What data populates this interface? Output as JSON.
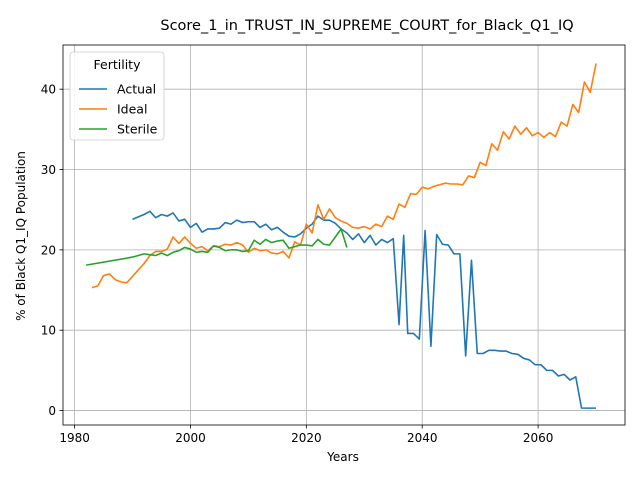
{
  "chart_data": {
    "type": "line",
    "title": "Score_1_in_TRUST_IN_SUPREME_COURT_for_Black_Q1_IQ",
    "xlabel": "Years",
    "ylabel": "% of Black Q1_IQ Population",
    "xlim": [
      1978,
      2075
    ],
    "ylim": [
      -1.8,
      45.5
    ],
    "xticks": [
      1980,
      2000,
      2020,
      2040,
      2060
    ],
    "yticks": [
      0,
      10,
      20,
      30,
      40
    ],
    "grid": true,
    "legend": {
      "title": "Fertility",
      "placement": "top-left"
    },
    "series": [
      {
        "name": "Actual",
        "color": "#1f77b4",
        "points": [
          [
            1990,
            23.8
          ],
          [
            1991,
            24.1
          ],
          [
            1992,
            24.4
          ],
          [
            1993,
            24.8
          ],
          [
            1994,
            24.0
          ],
          [
            1995,
            24.4
          ],
          [
            1996,
            24.2
          ],
          [
            1997,
            24.6
          ],
          [
            1998,
            23.6
          ],
          [
            1999,
            23.8
          ],
          [
            2000,
            22.8
          ],
          [
            2001,
            23.3
          ],
          [
            2002,
            22.2
          ],
          [
            2003,
            22.6
          ],
          [
            2004,
            22.6
          ],
          [
            2005,
            22.7
          ],
          [
            2006,
            23.4
          ],
          [
            2007,
            23.2
          ],
          [
            2008,
            23.7
          ],
          [
            2009,
            23.4
          ],
          [
            2010,
            23.5
          ],
          [
            2011,
            23.5
          ],
          [
            2012,
            22.8
          ],
          [
            2013,
            23.2
          ],
          [
            2014,
            22.5
          ],
          [
            2015,
            22.8
          ],
          [
            2016,
            22.2
          ],
          [
            2017,
            21.7
          ],
          [
            2018,
            21.6
          ],
          [
            2019,
            22.0
          ],
          [
            2020,
            22.7
          ],
          [
            2021,
            23.2
          ],
          [
            2022,
            24.2
          ],
          [
            2023,
            23.7
          ],
          [
            2024,
            23.7
          ],
          [
            2025,
            23.3
          ],
          [
            2026,
            22.6
          ],
          [
            2027,
            22.1
          ],
          [
            2028,
            21.3
          ],
          [
            2029,
            22.0
          ],
          [
            2030,
            20.9
          ],
          [
            2031,
            21.8
          ],
          [
            2032,
            20.6
          ],
          [
            2033,
            21.3
          ],
          [
            2034,
            20.9
          ],
          [
            2035,
            21.4
          ],
          [
            2036,
            10.7
          ],
          [
            2036.8,
            21.8
          ],
          [
            2037.5,
            9.6
          ],
          [
            2038.5,
            9.6
          ],
          [
            2039.5,
            8.9
          ],
          [
            2040.5,
            22.4
          ],
          [
            2041.5,
            8.0
          ],
          [
            2042.5,
            21.9
          ],
          [
            2043.5,
            20.7
          ],
          [
            2044.5,
            20.6
          ],
          [
            2045.5,
            19.5
          ],
          [
            2046.5,
            19.5
          ],
          [
            2047.5,
            6.8
          ],
          [
            2048.5,
            18.7
          ],
          [
            2049.5,
            7.1
          ],
          [
            2050.5,
            7.1
          ],
          [
            2051.5,
            7.5
          ],
          [
            2052.5,
            7.5
          ],
          [
            2053.5,
            7.4
          ],
          [
            2054.5,
            7.4
          ],
          [
            2055.5,
            7.1
          ],
          [
            2056.5,
            7.0
          ],
          [
            2057.5,
            6.5
          ],
          [
            2058.5,
            6.3
          ],
          [
            2059.5,
            5.7
          ],
          [
            2060.5,
            5.7
          ],
          [
            2061.5,
            5.0
          ],
          [
            2062.5,
            5.0
          ],
          [
            2063.5,
            4.3
          ],
          [
            2064.5,
            4.5
          ],
          [
            2065.5,
            3.8
          ],
          [
            2066.5,
            4.2
          ],
          [
            2067.5,
            0.3
          ],
          [
            2068.5,
            0.3
          ],
          [
            2070,
            0.3
          ]
        ]
      },
      {
        "name": "Ideal",
        "color": "#ff7f0e",
        "points": [
          [
            1983,
            15.3
          ],
          [
            1984,
            15.5
          ],
          [
            1985,
            16.8
          ],
          [
            1986,
            17.0
          ],
          [
            1987,
            16.3
          ],
          [
            1988,
            16.0
          ],
          [
            1989,
            15.9
          ],
          [
            1990,
            16.7
          ],
          [
            1991,
            17.5
          ],
          [
            1992,
            18.3
          ],
          [
            1993,
            19.3
          ],
          [
            1994,
            19.8
          ],
          [
            1995,
            19.8
          ],
          [
            1996,
            20.1
          ],
          [
            1997,
            21.6
          ],
          [
            1998,
            20.8
          ],
          [
            1999,
            21.6
          ],
          [
            2000,
            20.8
          ],
          [
            2001,
            20.2
          ],
          [
            2002,
            20.4
          ],
          [
            2003,
            19.9
          ],
          [
            2004,
            20.5
          ],
          [
            2005,
            20.4
          ],
          [
            2006,
            20.7
          ],
          [
            2007,
            20.6
          ],
          [
            2008,
            20.9
          ],
          [
            2009,
            20.6
          ],
          [
            2010,
            19.7
          ],
          [
            2011,
            20.2
          ],
          [
            2012,
            19.9
          ],
          [
            2013,
            20.0
          ],
          [
            2014,
            19.6
          ],
          [
            2015,
            19.5
          ],
          [
            2016,
            19.8
          ],
          [
            2017,
            19.0
          ],
          [
            2018,
            21.0
          ],
          [
            2019,
            20.6
          ],
          [
            2020,
            23.2
          ],
          [
            2021,
            22.1
          ],
          [
            2022,
            25.6
          ],
          [
            2023,
            23.8
          ],
          [
            2024,
            25.1
          ],
          [
            2025,
            24.0
          ],
          [
            2026,
            23.6
          ],
          [
            2027,
            23.3
          ],
          [
            2028,
            22.8
          ],
          [
            2029,
            22.7
          ],
          [
            2030,
            22.9
          ],
          [
            2031,
            22.6
          ],
          [
            2032,
            23.2
          ],
          [
            2033,
            22.9
          ],
          [
            2034,
            24.2
          ],
          [
            2035,
            23.8
          ],
          [
            2036,
            25.7
          ],
          [
            2037,
            25.3
          ],
          [
            2038,
            27.0
          ],
          [
            2039,
            26.9
          ],
          [
            2040,
            27.8
          ],
          [
            2041,
            27.6
          ],
          [
            2042,
            27.9
          ],
          [
            2043,
            28.1
          ],
          [
            2044,
            28.3
          ],
          [
            2045,
            28.2
          ],
          [
            2046,
            28.2
          ],
          [
            2047,
            28.1
          ],
          [
            2048,
            29.2
          ],
          [
            2049,
            29.0
          ],
          [
            2050,
            30.9
          ],
          [
            2051,
            30.5
          ],
          [
            2052,
            33.2
          ],
          [
            2053,
            32.4
          ],
          [
            2054,
            34.7
          ],
          [
            2055,
            33.8
          ],
          [
            2056,
            35.4
          ],
          [
            2057,
            34.4
          ],
          [
            2058,
            35.2
          ],
          [
            2059,
            34.2
          ],
          [
            2060,
            34.6
          ],
          [
            2061,
            34.0
          ],
          [
            2062,
            34.6
          ],
          [
            2063,
            34.1
          ],
          [
            2064,
            35.9
          ],
          [
            2065,
            35.4
          ],
          [
            2066,
            38.1
          ],
          [
            2067,
            37.1
          ],
          [
            2068,
            40.9
          ],
          [
            2069,
            39.6
          ],
          [
            2070,
            43.2
          ]
        ]
      },
      {
        "name": "Sterile",
        "color": "#2ca02c",
        "points": [
          [
            1982,
            18.1
          ],
          [
            1990,
            19.1
          ],
          [
            1991,
            19.3
          ],
          [
            1992,
            19.5
          ],
          [
            1993,
            19.4
          ],
          [
            1994,
            19.3
          ],
          [
            1995,
            19.6
          ],
          [
            1996,
            19.3
          ],
          [
            1997,
            19.7
          ],
          [
            1998,
            19.9
          ],
          [
            1999,
            20.3
          ],
          [
            2000,
            20.1
          ],
          [
            2001,
            19.7
          ],
          [
            2002,
            19.8
          ],
          [
            2003,
            19.7
          ],
          [
            2004,
            20.5
          ],
          [
            2005,
            20.3
          ],
          [
            2006,
            19.9
          ],
          [
            2007,
            20.0
          ],
          [
            2008,
            20.0
          ],
          [
            2009,
            19.8
          ],
          [
            2010,
            19.9
          ],
          [
            2011,
            21.2
          ],
          [
            2012,
            20.7
          ],
          [
            2013,
            21.3
          ],
          [
            2014,
            20.9
          ],
          [
            2015,
            21.1
          ],
          [
            2016,
            21.2
          ],
          [
            2017,
            20.2
          ],
          [
            2018,
            20.4
          ],
          [
            2019,
            20.6
          ],
          [
            2020,
            20.6
          ],
          [
            2021,
            20.5
          ],
          [
            2022,
            21.3
          ],
          [
            2023,
            20.7
          ],
          [
            2024,
            20.6
          ],
          [
            2025,
            21.6
          ],
          [
            2026,
            22.6
          ],
          [
            2027,
            20.3
          ]
        ]
      }
    ]
  }
}
